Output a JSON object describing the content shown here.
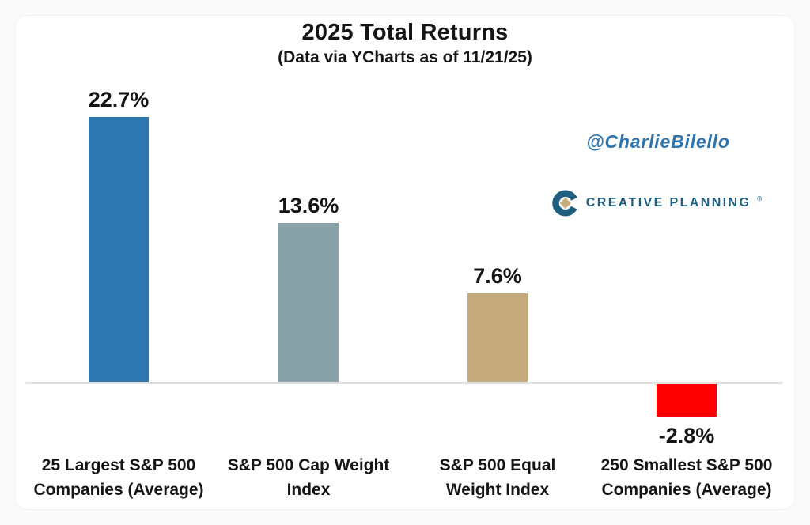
{
  "branding": {
    "handle": "@CharlieBilello",
    "handle_color": "#2e74ae",
    "logo_text": "CREATIVE PLANNING",
    "logo_reg_mark": "®",
    "logo_text_color": "#1e5f80",
    "logo_mark_color": "#1e5f80",
    "logo_diamond_color": "#c5aa7b"
  },
  "chart_data": {
    "type": "bar",
    "title": "2025 Total Returns",
    "subtitle": "(Data via YCharts as of 11/21/25)",
    "categories": [
      "25 Largest S&P 500 Companies (Average)",
      "S&P 500 Cap Weight Index",
      "S&P 500 Equal Weight Index",
      "250 Smallest S&P 500 Companies (Average)"
    ],
    "category_lines": [
      [
        "25 Largest S&P 500",
        "Companies (Average)"
      ],
      [
        "S&P 500 Cap Weight",
        "Index"
      ],
      [
        "S&P 500 Equal",
        "Weight Index"
      ],
      [
        "250 Smallest S&P 500",
        "Companies (Average)"
      ]
    ],
    "values": [
      22.7,
      13.6,
      7.6,
      -2.8
    ],
    "value_labels": [
      "22.7%",
      "13.6%",
      "7.6%",
      "-2.8%"
    ],
    "bar_colors": [
      "#2d78b0",
      "#89a1a8",
      "#c5aa7b",
      "#fe0000"
    ],
    "text_color": "#151515",
    "baseline_color": "#e1e1e1",
    "xlabel": "",
    "ylabel": "",
    "ylim": [
      -5,
      25
    ],
    "grid": false,
    "legend": false
  }
}
